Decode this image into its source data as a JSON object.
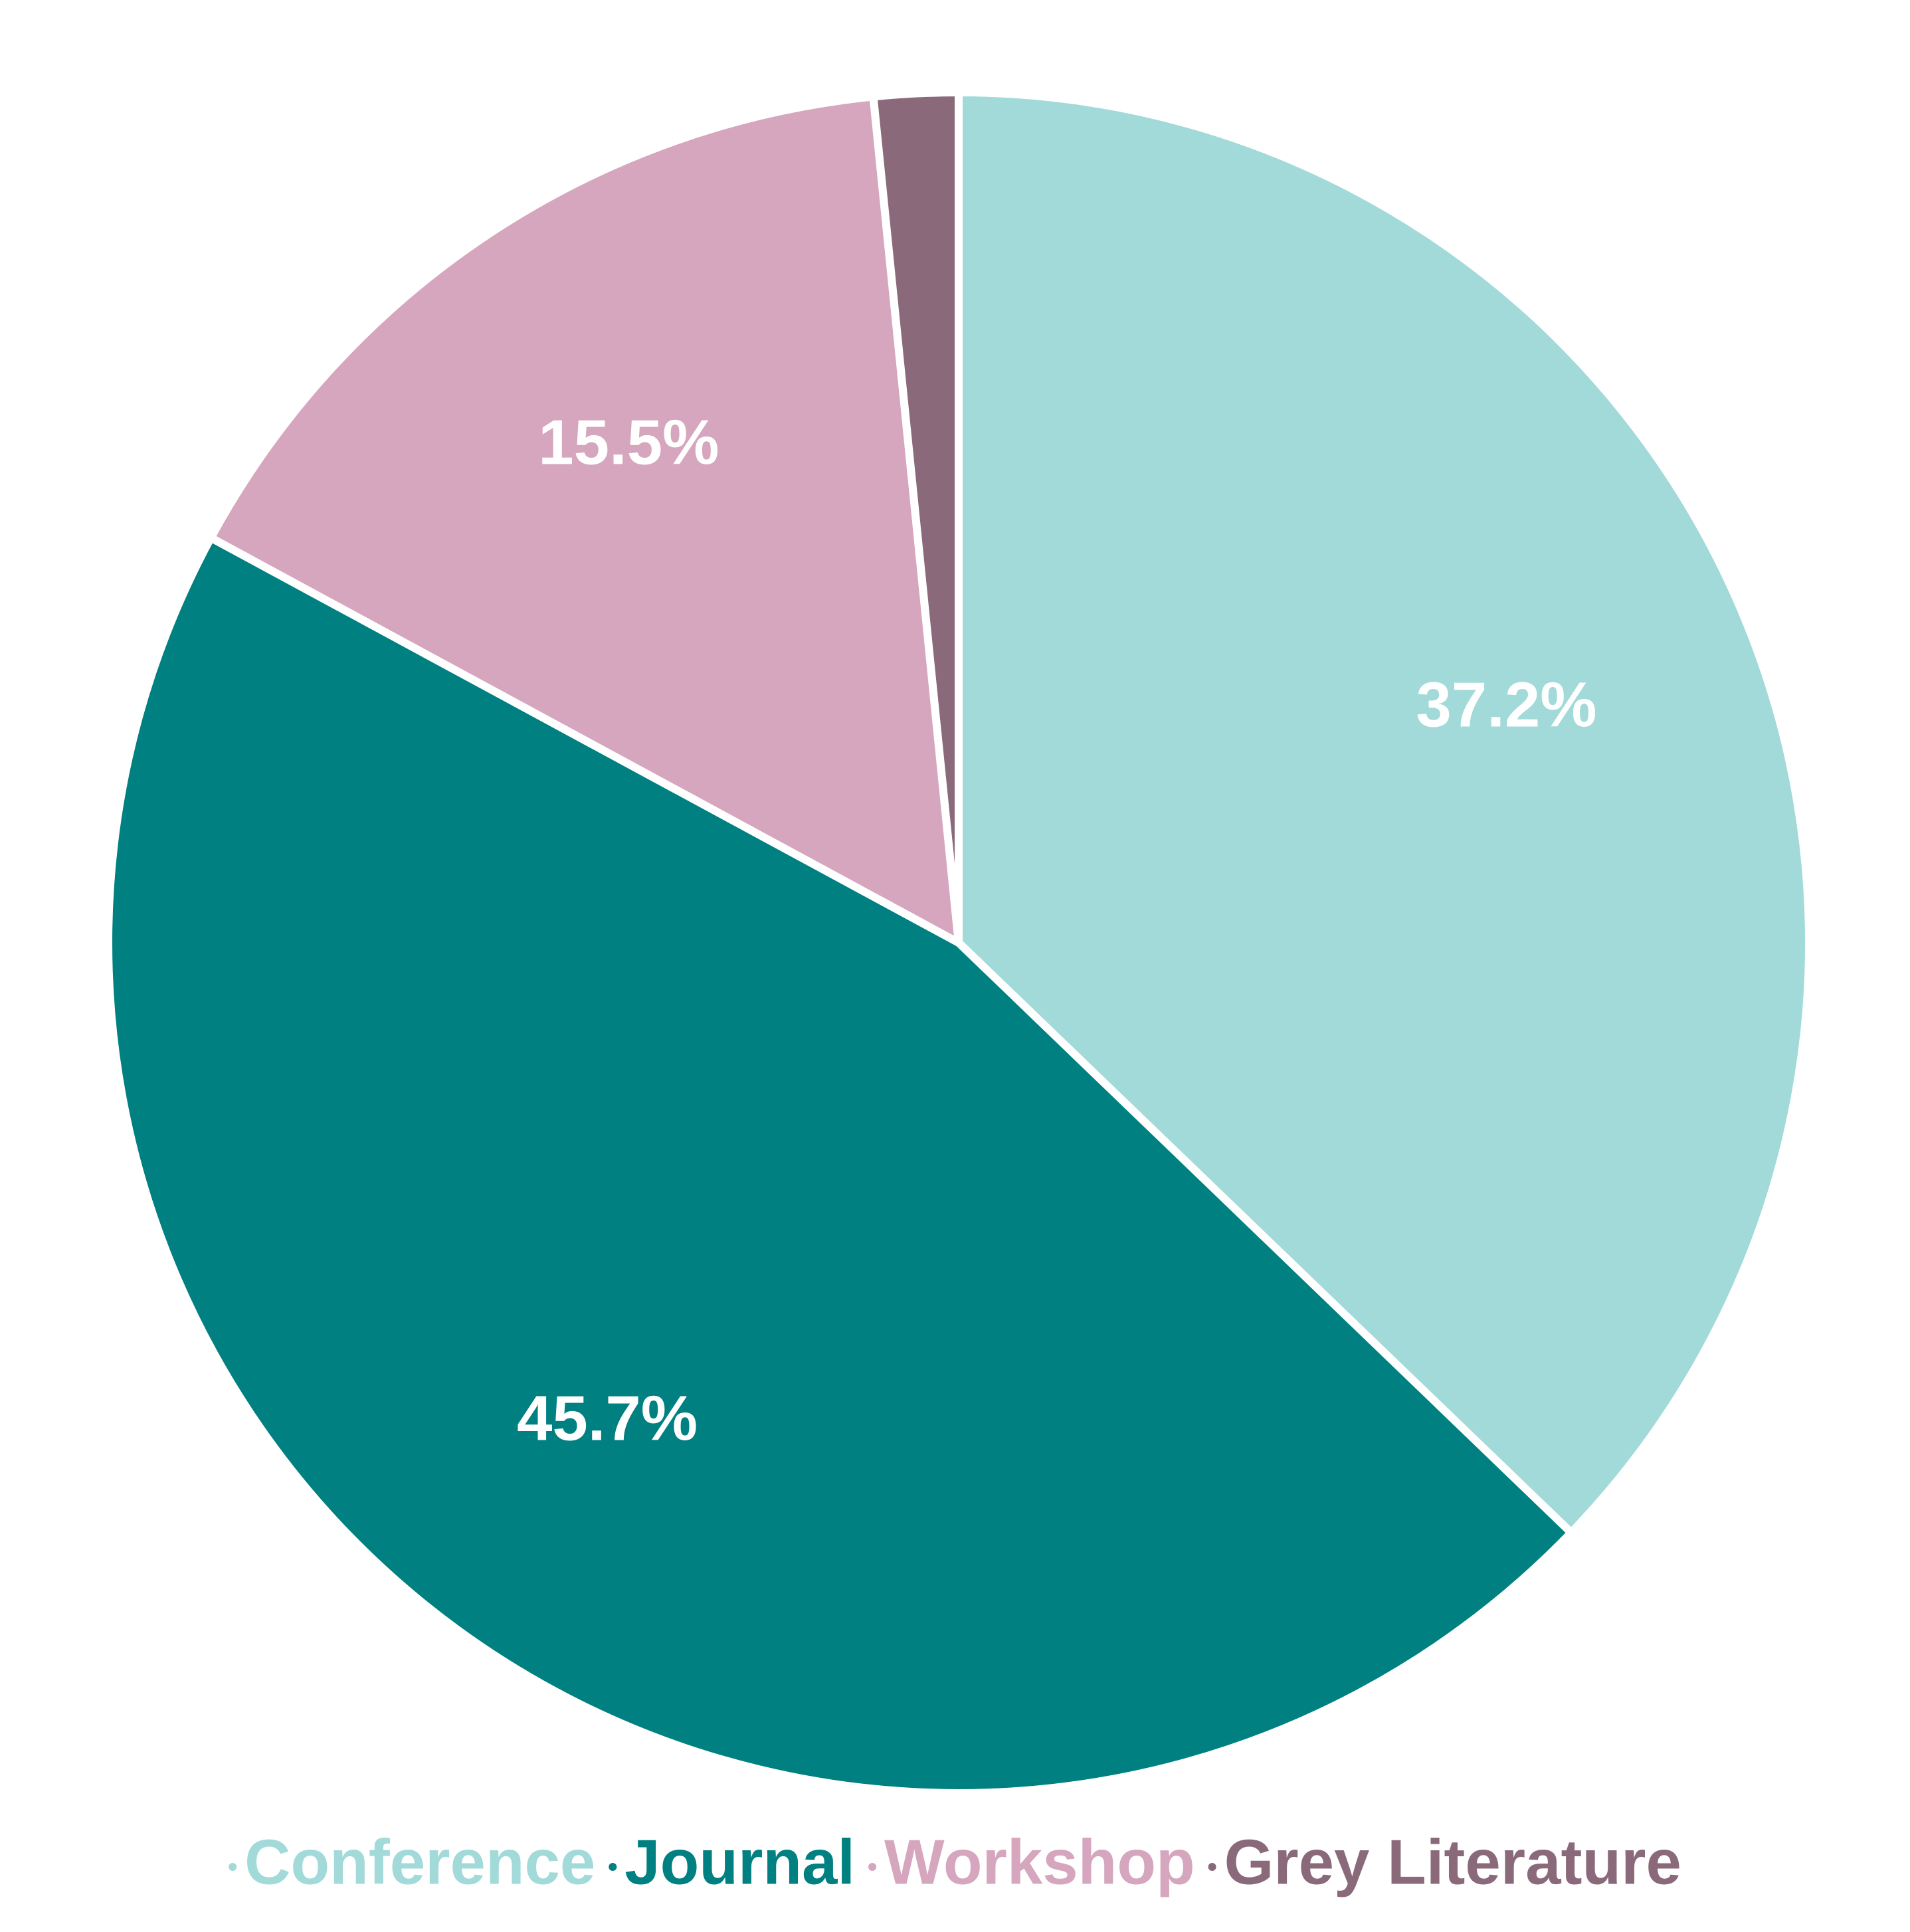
{
  "chart_data": {
    "type": "pie",
    "categories": [
      "Conference",
      "Journal",
      "Workshop",
      "Grey Literature"
    ],
    "values": [
      37.2,
      45.7,
      15.5,
      1.6
    ],
    "value_labels": [
      "37.2%",
      "45.7%",
      "15.5%",
      null
    ],
    "colors": [
      "#a2d9d9",
      "#008080",
      "#d5a6bd",
      "#8a6a7a"
    ],
    "legend": "bottom"
  }
}
